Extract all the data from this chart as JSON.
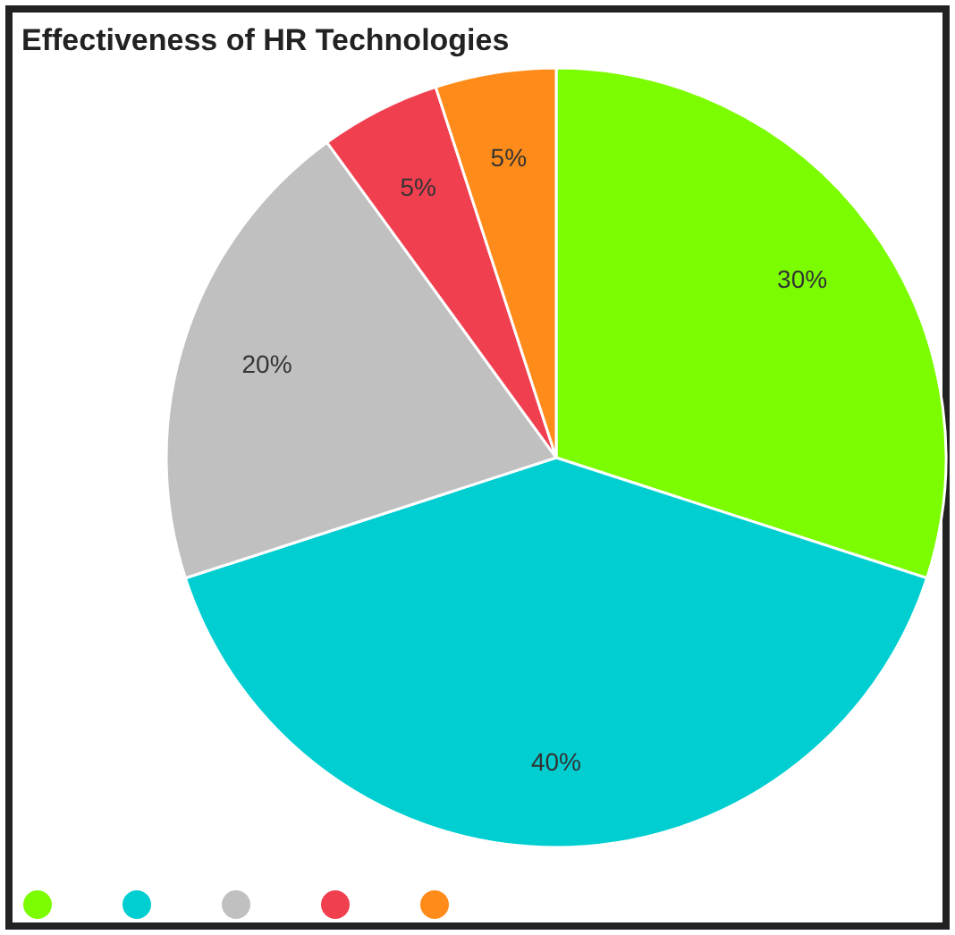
{
  "chart_data": {
    "type": "pie",
    "title": "Effectiveness of HR Technologies",
    "categories": [
      null,
      null,
      null,
      null,
      null
    ],
    "values": [
      30,
      40,
      20,
      5,
      5
    ],
    "colors": [
      "#7cfc00",
      "#00ced1",
      "#c0c0c0",
      "#f04050",
      "#ff8c1a"
    ],
    "value_labels": [
      "30%",
      "40%",
      "20%",
      "5%",
      "5%"
    ]
  }
}
